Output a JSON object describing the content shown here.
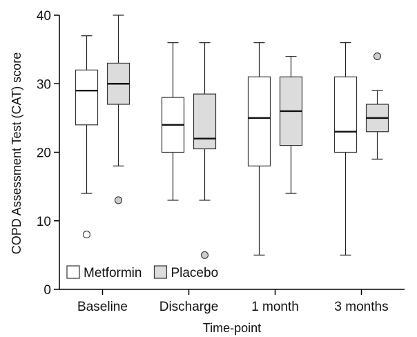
{
  "chart_data": {
    "type": "boxplot",
    "xlabel": "Time-point",
    "ylabel": "COPD Assessment Test (CAT) score",
    "ylim": [
      0,
      40
    ],
    "yticks": [
      0,
      10,
      20,
      30,
      40
    ],
    "categories": [
      "Baseline",
      "Discharge",
      "1 month",
      "3 months"
    ],
    "legend_position": "bottom-left",
    "series": [
      {
        "name": "Metformin",
        "color": "#ffffff",
        "boxes": [
          {
            "min": 14,
            "q1": 24,
            "median": 29,
            "q3": 32,
            "max": 37,
            "outliers": [
              8
            ]
          },
          {
            "min": 13,
            "q1": 20,
            "median": 24,
            "q3": 28,
            "max": 36,
            "outliers": []
          },
          {
            "min": 5,
            "q1": 18,
            "median": 25,
            "q3": 31,
            "max": 36,
            "outliers": []
          },
          {
            "min": 5,
            "q1": 20,
            "median": 23,
            "q3": 31,
            "max": 36,
            "outliers": []
          }
        ]
      },
      {
        "name": "Placebo",
        "color": "#dcdcdc",
        "boxes": [
          {
            "min": 18,
            "q1": 27,
            "median": 30,
            "q3": 33,
            "max": 40,
            "outliers": [
              13
            ]
          },
          {
            "min": 13,
            "q1": 20.5,
            "median": 22,
            "q3": 28.5,
            "max": 36,
            "outliers": [
              5
            ]
          },
          {
            "min": 14,
            "q1": 21,
            "median": 26,
            "q3": 31,
            "max": 34,
            "outliers": []
          },
          {
            "min": 19,
            "q1": 23,
            "median": 25,
            "q3": 27,
            "max": 29,
            "outliers": [
              34
            ]
          }
        ]
      }
    ]
  }
}
